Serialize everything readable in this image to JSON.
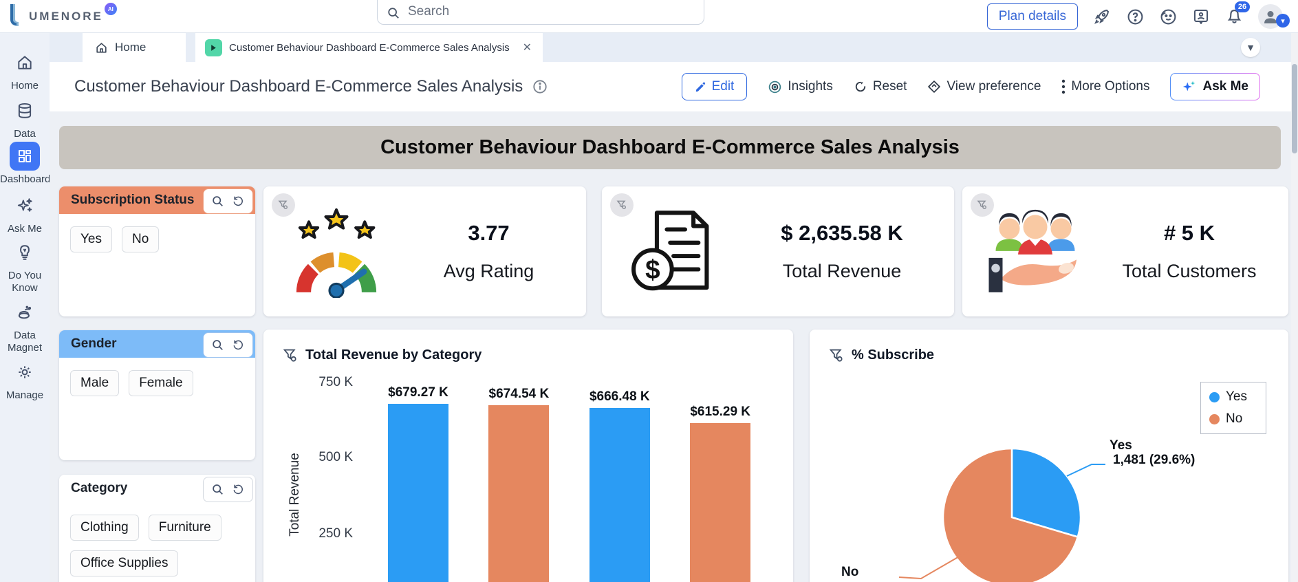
{
  "topbar": {
    "logo_text": "UMENORE",
    "logo_badge": "AI",
    "search_placeholder": "Search",
    "plan_details_label": "Plan details",
    "notification_count": "26"
  },
  "tabbar": {
    "home_label": "Home",
    "active_tab": "Customer Behaviour Dashboard E-Commerce Sales Analysis"
  },
  "titlebar": {
    "title": "Customer Behaviour Dashboard E-Commerce Sales Analysis",
    "actions": {
      "edit": "Edit",
      "insights": "Insights",
      "reset": "Reset",
      "view_preference": "View preference",
      "more_options": "More Options",
      "ask_me": "Ask Me"
    }
  },
  "sidebar": {
    "items": [
      {
        "label": "Home"
      },
      {
        "label": "Data"
      },
      {
        "label": "Dashboard",
        "active": true
      },
      {
        "label": "Ask Me"
      },
      {
        "label": "Do You Know"
      },
      {
        "label": "Data Magnet"
      },
      {
        "label": "Manage"
      }
    ]
  },
  "banner": {
    "title": "Customer Behaviour Dashboard E-Commerce Sales Analysis"
  },
  "filters": [
    {
      "title": "Subscription Status",
      "header_color": "#ec8e6b",
      "tools_border": "#eda284",
      "options": [
        "Yes",
        "No"
      ]
    },
    {
      "title": "Gender",
      "header_color": "#7dbbf8",
      "tools_border": "#9cc3f0",
      "options": [
        "Male",
        "Female"
      ]
    },
    {
      "title": "Category",
      "header_color": "#ffffff",
      "tools_border": "#d3d8df",
      "options": [
        "Clothing",
        "Furniture",
        "Office Supplies"
      ]
    }
  ],
  "kpis": [
    {
      "value": "3.77",
      "label": "Avg Rating"
    },
    {
      "value": "$ 2,635.58 K",
      "label": "Total Revenue"
    },
    {
      "value": "# 5 K",
      "label": "Total Customers"
    }
  ],
  "chart_data": [
    {
      "type": "bar",
      "title": "Total Revenue by Category",
      "ylabel": "Total Revenue",
      "yticks": [
        "750 K",
        "500 K",
        "250 K"
      ],
      "ylim_k": [
        0,
        750
      ],
      "grid": false,
      "bars": [
        {
          "label": "$679.27 K",
          "value_k": 679.27,
          "color": "#2b9cf4"
        },
        {
          "label": "$674.54 K",
          "value_k": 674.54,
          "color": "#e5875f"
        },
        {
          "label": "$666.48 K",
          "value_k": 666.48,
          "color": "#2b9cf4"
        },
        {
          "label": "$615.29 K",
          "value_k": 615.29,
          "color": "#e5875f"
        }
      ]
    },
    {
      "type": "pie",
      "title": "% Subscribe",
      "legend_position": "top-right",
      "legend": [
        {
          "name": "Yes",
          "color": "#2b9cf4"
        },
        {
          "name": "No",
          "color": "#e5875f"
        }
      ],
      "slices": [
        {
          "name": "Yes",
          "count": "1,481",
          "pct": 29.6,
          "color": "#2b9cf4",
          "callout_line1": "Yes",
          "callout_line2": "1,481 (29.6%)"
        },
        {
          "name": "No",
          "pct": 70.4,
          "color": "#e5875f",
          "callout_line1": "No"
        }
      ]
    }
  ]
}
